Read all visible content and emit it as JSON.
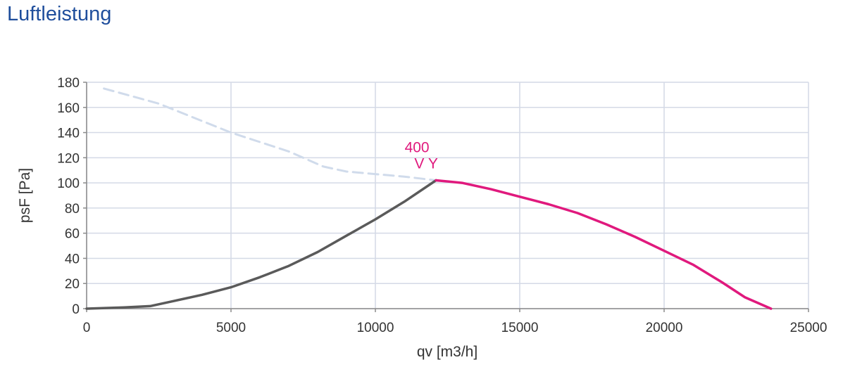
{
  "page": {
    "title": "Luftleistung"
  },
  "colors": {
    "grid": "#d4d9e6",
    "system_curve": "#d0dbeb",
    "fan_curve_left": "#5a5a5a",
    "fan_curve_right": "#e0197d",
    "operating_label": "#e0197d",
    "title": "#1f4e9c"
  },
  "chart_data": {
    "type": "line",
    "xlabel": "qv [m3/h]",
    "ylabel": "psF [Pa]",
    "xlim": [
      0,
      25000
    ],
    "ylim": [
      0,
      180
    ],
    "x_ticks": [
      "0",
      "5000",
      "10000",
      "15000",
      "20000",
      "25000"
    ],
    "y_ticks": [
      "0",
      "20",
      "40",
      "60",
      "80",
      "100",
      "120",
      "140",
      "160",
      "180"
    ],
    "grid": true,
    "operating_point": {
      "x": 12100,
      "y": 102,
      "label_line1": "400",
      "label_line2": "V Y"
    },
    "series": [
      {
        "style": "dashed",
        "color": "#d0dbeb",
        "points": [
          [
            600,
            175
          ],
          [
            2500,
            163
          ],
          [
            5000,
            140
          ],
          [
            7000,
            125
          ],
          [
            8200,
            113
          ],
          [
            9000,
            109
          ],
          [
            10000,
            107
          ],
          [
            11000,
            105
          ],
          [
            12100,
            102
          ]
        ]
      },
      {
        "style": "solid",
        "color": "#5a5a5a",
        "points": [
          [
            0,
            0
          ],
          [
            1300,
            1
          ],
          [
            2200,
            2
          ],
          [
            3000,
            6
          ],
          [
            4000,
            11
          ],
          [
            5000,
            17
          ],
          [
            6000,
            25
          ],
          [
            7000,
            34
          ],
          [
            8000,
            45
          ],
          [
            9000,
            58
          ],
          [
            10000,
            71
          ],
          [
            11000,
            85
          ],
          [
            12100,
            102
          ]
        ]
      },
      {
        "style": "solid",
        "color": "#e0197d",
        "points": [
          [
            12100,
            102
          ],
          [
            13000,
            100
          ],
          [
            14000,
            95
          ],
          [
            15000,
            89
          ],
          [
            16000,
            83
          ],
          [
            17000,
            76
          ],
          [
            18000,
            67
          ],
          [
            19000,
            57
          ],
          [
            20000,
            46
          ],
          [
            21000,
            35
          ],
          [
            22000,
            21
          ],
          [
            22800,
            9
          ],
          [
            23700,
            0
          ]
        ]
      }
    ]
  }
}
